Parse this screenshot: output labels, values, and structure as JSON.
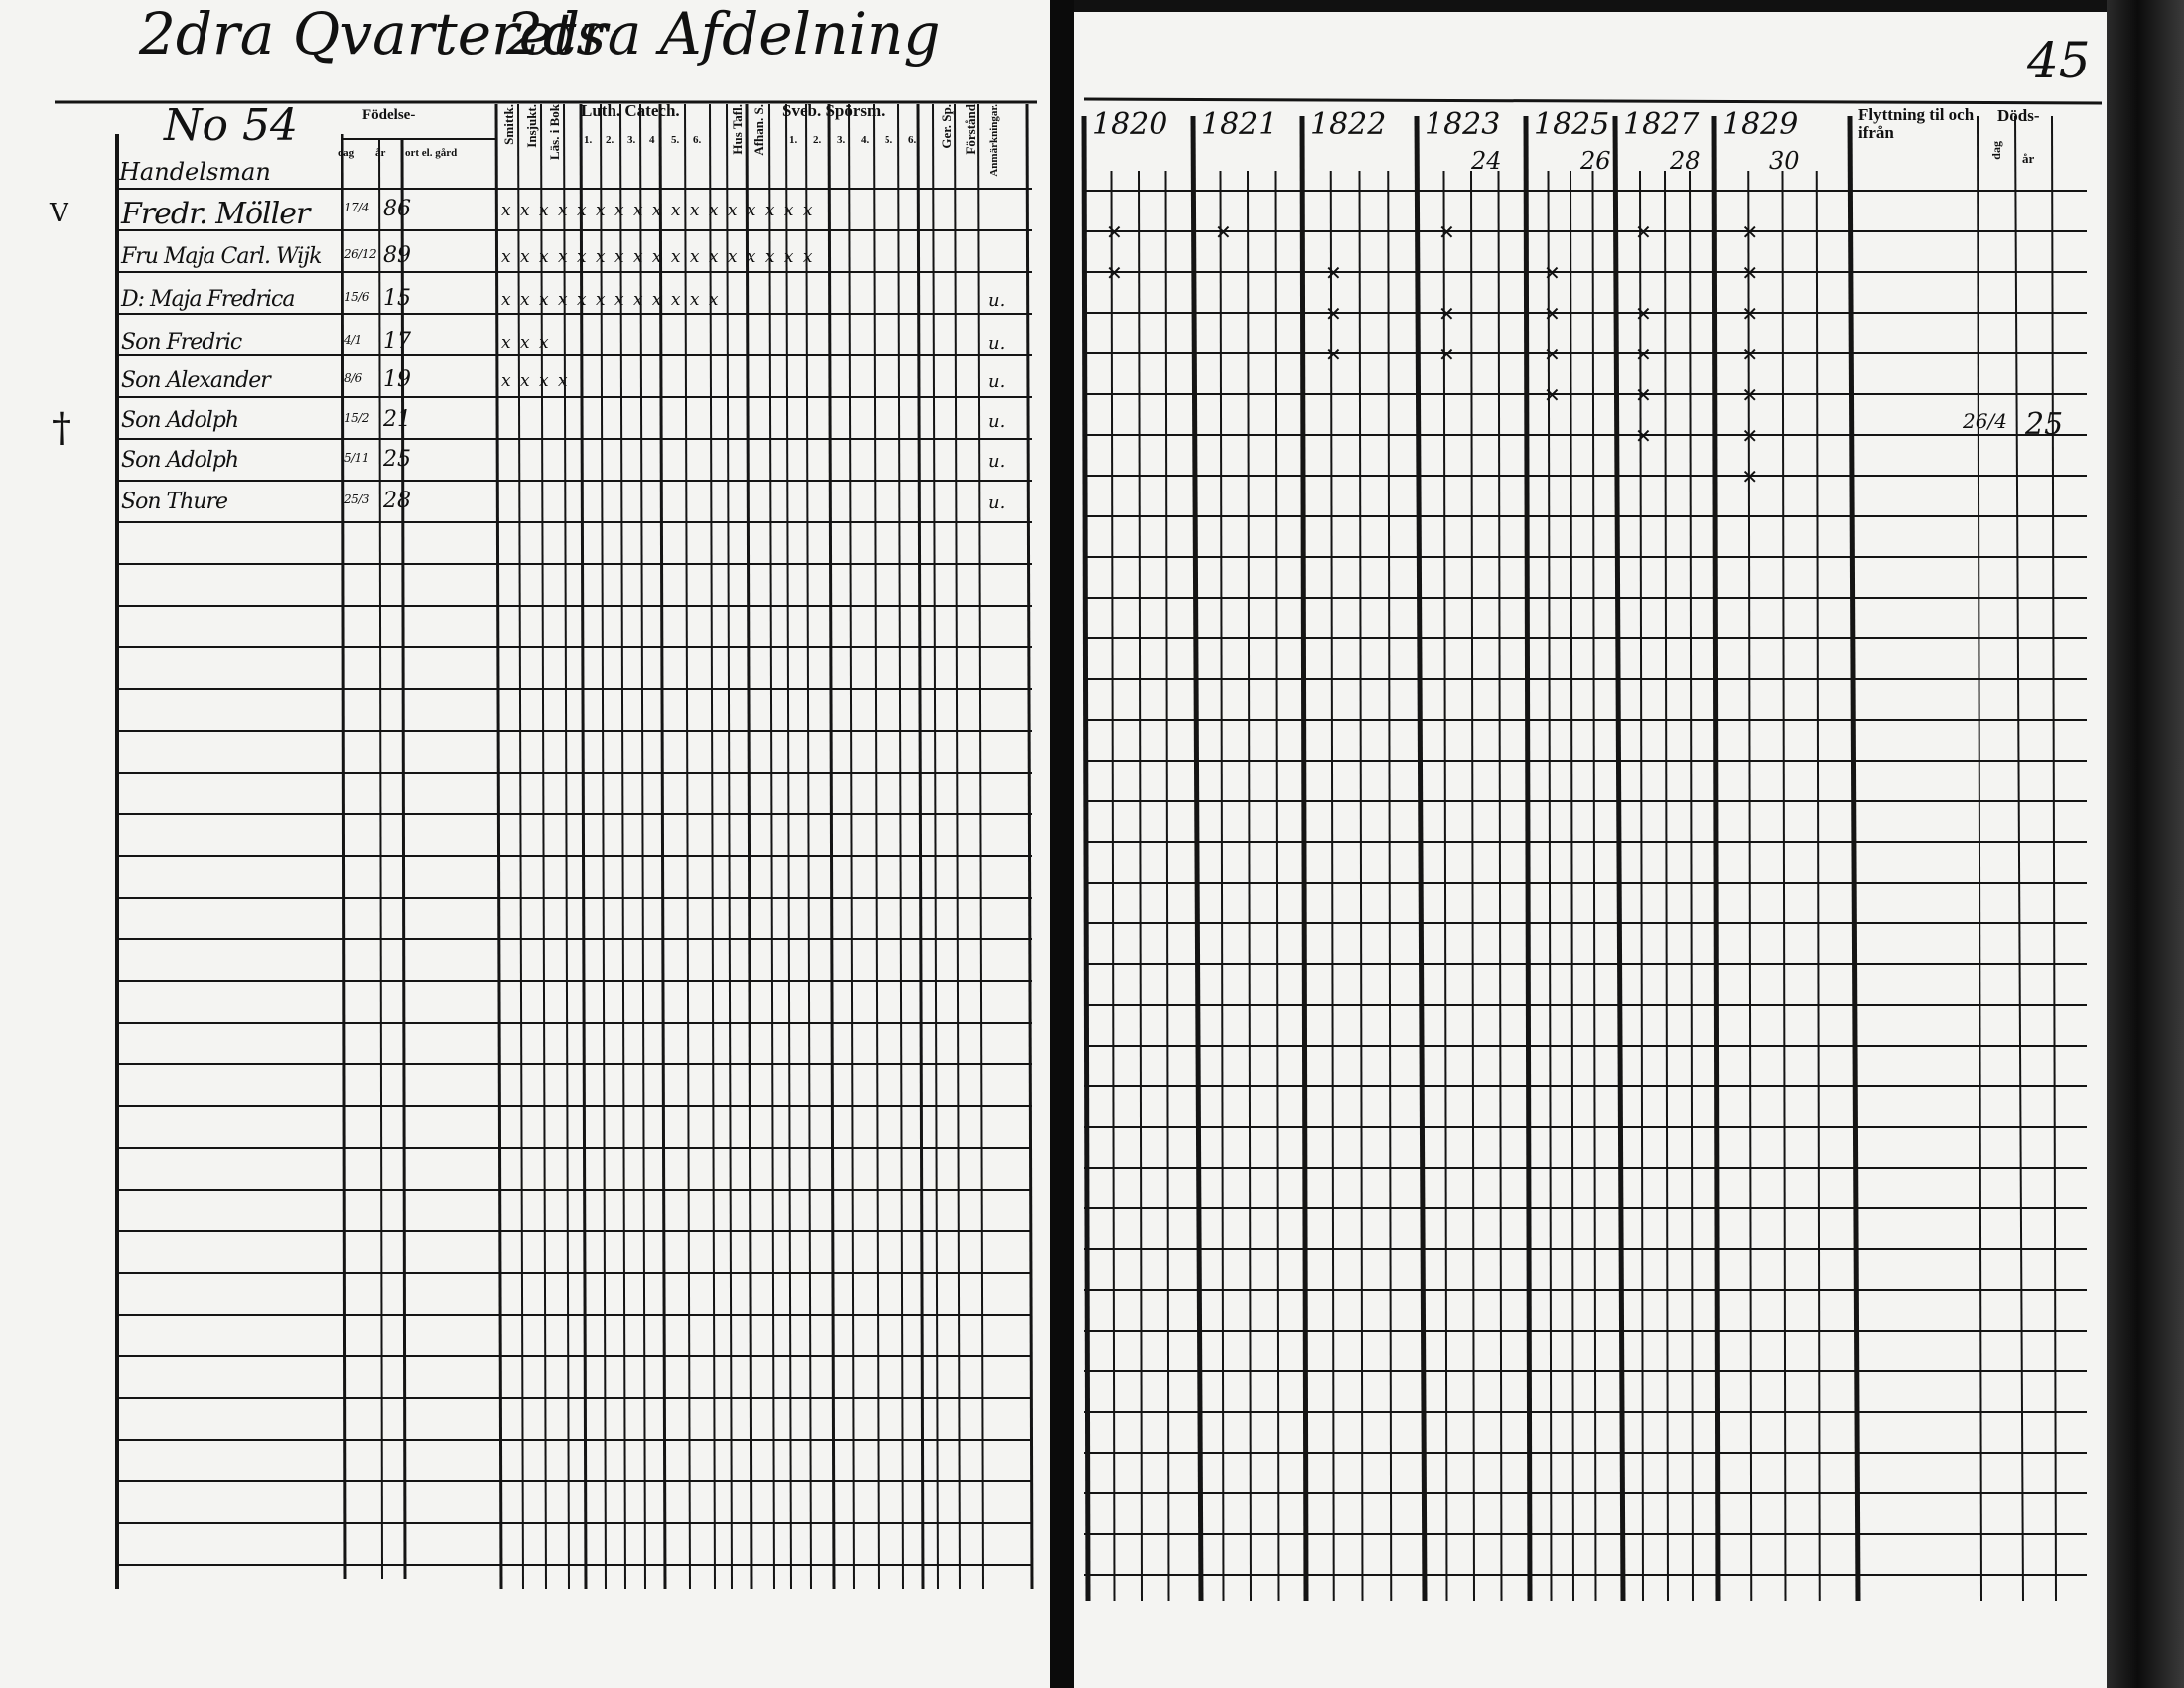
{
  "left_page": {
    "title_quarter": "2dra Qvarterets",
    "title_division": "2dra Afdelning",
    "household_number": "No 54",
    "occupation": "Handelsman",
    "headers": {
      "birth": "Födelse-",
      "day": "dag",
      "year": "år",
      "place": "ort el. gård",
      "col_a": "Smittk.",
      "col_b": "Insjukt.",
      "col_c": "Läs. i Bok",
      "catechism": "Luth. Catech.",
      "catechism_parts": [
        "1.",
        "2.",
        "3.",
        "4",
        "5.",
        "6."
      ],
      "hustafla": "Hus Tafl.",
      "afhandl": "Afhan. S.",
      "questions": "Sveb. Spörsm.",
      "question_parts": [
        "1.",
        "2.",
        "3.",
        "4.",
        "5.",
        "6."
      ],
      "ger_sp": "Ger. Sp.",
      "forstand": "Förstånd",
      "remarks": "Anmärkningar."
    },
    "margin_marks": {
      "check": "V",
      "cross": "†"
    },
    "persons": [
      {
        "name": "Fredr. Möller",
        "birth_day": "17/4",
        "birth_year": "86",
        "marks": "x x x x x x x x x x x x x x x x x",
        "remark": ""
      },
      {
        "name": "Fru Maja Carl. Wijk",
        "birth_day": "26/12",
        "birth_year": "89",
        "marks": "x x x x x x x x x x x x x x x x x",
        "remark": ""
      },
      {
        "name": "D: Maja Fredrica",
        "birth_day": "15/6",
        "birth_year": "15",
        "marks": "x x x x x x x x x x x x",
        "remark": "u."
      },
      {
        "name": "Son Fredric",
        "birth_day": "4/1",
        "birth_year": "17",
        "marks": "x x x",
        "remark": "u."
      },
      {
        "name": "Son Alexander",
        "birth_day": "8/6",
        "birth_year": "19",
        "marks": "x x x x",
        "remark": "u."
      },
      {
        "name": "Son Adolph",
        "birth_day": "15/2",
        "birth_year": "21",
        "marks": "",
        "remark": "u."
      },
      {
        "name": "Son Adolph",
        "birth_day": "5/11",
        "birth_year": "25",
        "marks": "",
        "remark": "u."
      },
      {
        "name": "Son Thure",
        "birth_day": "25/3",
        "birth_year": "28",
        "marks": "",
        "remark": "u."
      }
    ]
  },
  "right_page": {
    "page_number": "45",
    "years": [
      {
        "label": "1820",
        "sub": ""
      },
      {
        "label": "1821",
        "sub": ""
      },
      {
        "label": "1822",
        "sub": ""
      },
      {
        "label": "1823",
        "sub": "24"
      },
      {
        "label": "1825",
        "sub": "26"
      },
      {
        "label": "1827",
        "sub": "28"
      },
      {
        "label": "1829",
        "sub": "30"
      }
    ],
    "moving_header": "Flyttning til och ifrån",
    "death_header": "Döds-",
    "death_day": "dag",
    "death_year": "år",
    "attendance_mark": "✕",
    "attendance": [
      [
        1,
        1,
        0,
        1,
        0,
        1,
        1
      ],
      [
        1,
        0,
        1,
        0,
        1,
        0,
        1
      ],
      [
        0,
        0,
        1,
        1,
        1,
        1,
        1
      ],
      [
        0,
        0,
        1,
        1,
        1,
        1,
        1
      ],
      [
        0,
        0,
        0,
        0,
        1,
        1,
        1
      ],
      [
        0,
        0,
        0,
        0,
        0,
        1,
        1
      ],
      [
        0,
        0,
        0,
        0,
        0,
        0,
        1
      ],
      [
        0,
        0,
        0,
        0,
        0,
        0,
        0
      ]
    ],
    "death_entry": {
      "day": "26/4",
      "year": "25"
    }
  }
}
